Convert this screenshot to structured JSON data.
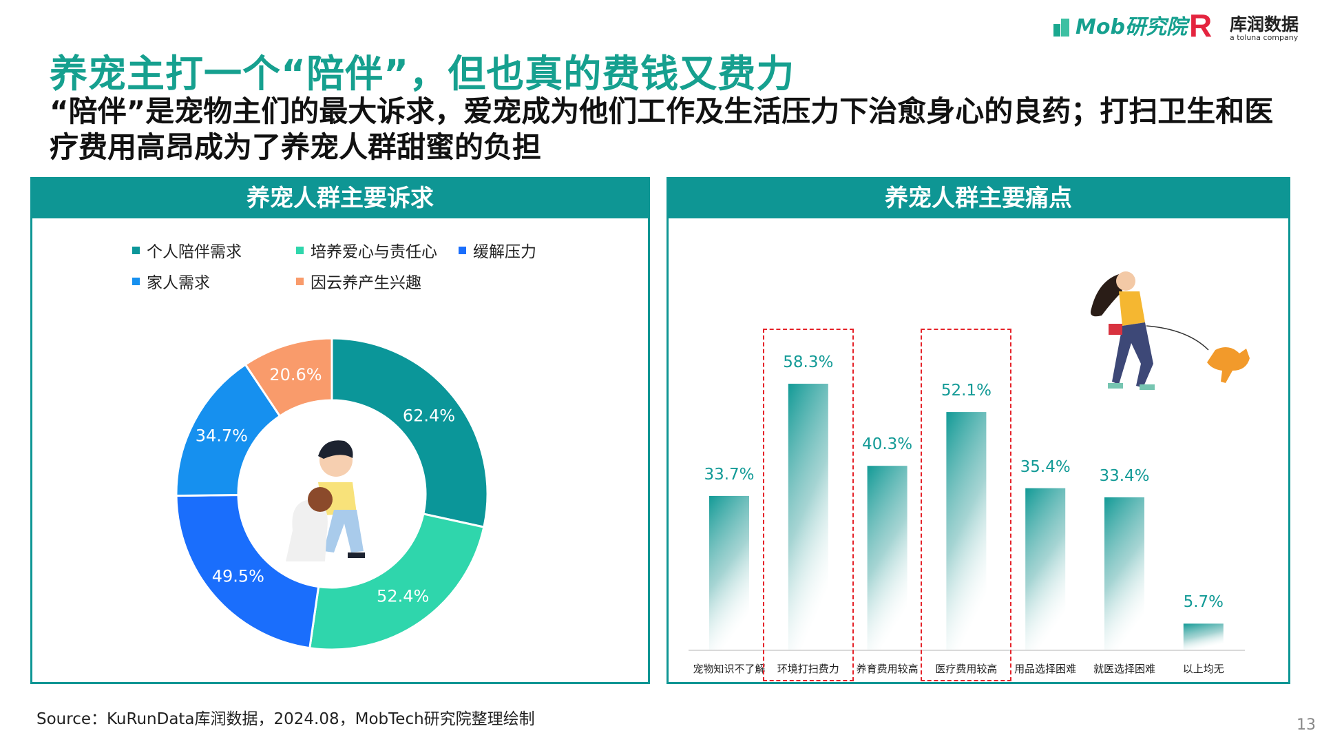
{
  "header": {
    "title": "养宠主打一个“陪伴”，但也真的费钱又费力",
    "subtitle": "“陪伴”是宠物主们的最大诉求，爱宠成为他们工作及生活压力下治愈身心的良药；打扫卫生和医疗费用高昂成为了养宠人群甜蜜的负担",
    "logos": {
      "mob": "Mob研究院",
      "kurun": "库润数据",
      "kurun_sub": "a toluna company"
    }
  },
  "colors": {
    "brand": "#0e9694",
    "highlight": "#e52229"
  },
  "chart_data": [
    {
      "type": "pie",
      "title": "养宠人群主要诉求",
      "legend_position": "top",
      "categories": [
        "个人陪伴需求",
        "培养爱心与责任心",
        "缓解压力",
        "家人需求",
        "因云养产生兴趣"
      ],
      "values": [
        62.4,
        52.4,
        49.5,
        34.7,
        20.6
      ],
      "labels": [
        "62.4%",
        "52.4%",
        "49.5%",
        "34.7%",
        "20.6%"
      ],
      "colors": [
        "#0b9699",
        "#2fd6ac",
        "#1a6efc",
        "#1690ef",
        "#f99b6b"
      ]
    },
    {
      "type": "bar",
      "title": "养宠人群主要痛点",
      "categories": [
        "宠物知识不了解",
        "环境打扫费力",
        "养育费用较高",
        "医疗费用较高",
        "用品选择困难",
        "就医选择困难",
        "以上均无"
      ],
      "values": [
        33.7,
        58.3,
        40.3,
        52.1,
        35.4,
        33.4,
        5.7
      ],
      "labels": [
        "33.7%",
        "58.3%",
        "40.3%",
        "52.1%",
        "35.4%",
        "33.4%",
        "5.7%"
      ],
      "highlighted": [
        "环境打扫费力",
        "医疗费用较高"
      ],
      "ylim": [
        0,
        70
      ],
      "grid": false
    }
  ],
  "footer": {
    "source": "Source：KuRunData库润数据，2024.08，MobTech研究院整理绘制",
    "page": "13"
  }
}
